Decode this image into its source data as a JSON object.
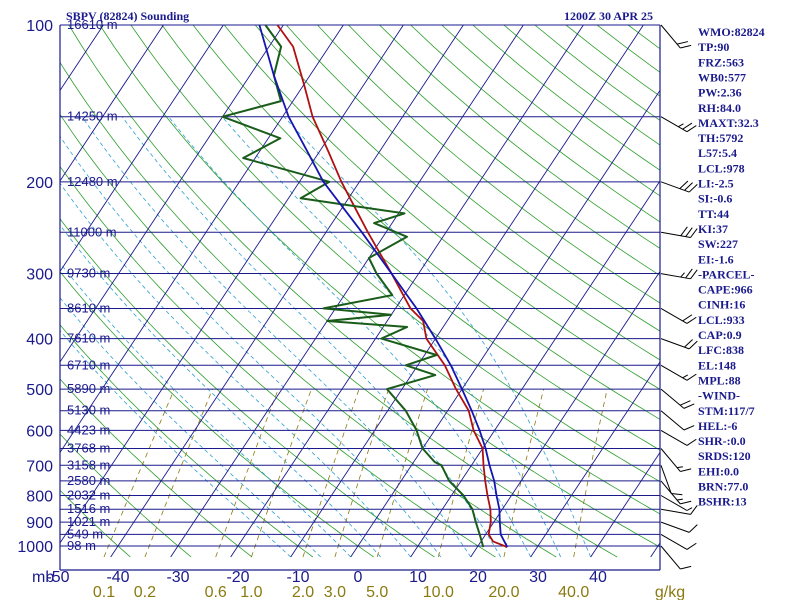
{
  "header": {
    "title": "SBPV (82824) Sounding",
    "time": "1200Z 30 APR 25"
  },
  "chart_data": {
    "type": "line",
    "skewt": true,
    "pressure_ticks": [
      100,
      200,
      300,
      400,
      500,
      600,
      700,
      800,
      900,
      1000
    ],
    "pressure_unit_label": "mb",
    "temp_ticks": [
      -50,
      -40,
      -30,
      -20,
      -10,
      0,
      10,
      20,
      30,
      40
    ],
    "mixing_ratio_ticks": [
      {
        "value": 0.1,
        "label": "0.1"
      },
      {
        "value": 0.2,
        "label": "0.2"
      },
      {
        "value": 0.6,
        "label": "0.6"
      },
      {
        "value": 1.0,
        "label": "1.0"
      },
      {
        "value": 2.0,
        "label": "2.0"
      },
      {
        "value": 3.0,
        "label": "3.0"
      },
      {
        "value": 5.0,
        "label": "5.0"
      },
      {
        "value": 10.0,
        "label": "10.0"
      },
      {
        "value": 20.0,
        "label": "20.0"
      },
      {
        "value": 40.0,
        "label": "40.0"
      }
    ],
    "mixing_ratio_unit": "g/kg",
    "heights": [
      {
        "p": 100,
        "label": "16610 m"
      },
      {
        "p": 150,
        "label": "14250 m"
      },
      {
        "p": 200,
        "label": "12480 m"
      },
      {
        "p": 250,
        "label": "11000 m"
      },
      {
        "p": 300,
        "label": "9730 m"
      },
      {
        "p": 350,
        "label": "8610 m"
      },
      {
        "p": 400,
        "label": "7610 m"
      },
      {
        "p": 450,
        "label": "6710 m"
      },
      {
        "p": 500,
        "label": "5890 m"
      },
      {
        "p": 550,
        "label": "5130 m"
      },
      {
        "p": 600,
        "label": "4423 m"
      },
      {
        "p": 650,
        "label": "3768 m"
      },
      {
        "p": 700,
        "label": "3158 m"
      },
      {
        "p": 750,
        "label": "2580 m"
      },
      {
        "p": 800,
        "label": "2032 m"
      },
      {
        "p": 850,
        "label": "1516 m"
      },
      {
        "p": 900,
        "label": "1021 m"
      },
      {
        "p": 950,
        "label": "549 m"
      },
      {
        "p": 1000,
        "label": "98 m"
      }
    ],
    "series": [
      {
        "key": "temperature",
        "color": "#b01010",
        "points": [
          [
            1005,
            25
          ],
          [
            980,
            22
          ],
          [
            950,
            20.5
          ],
          [
            925,
            20
          ],
          [
            900,
            19.5
          ],
          [
            850,
            18
          ],
          [
            800,
            16
          ],
          [
            750,
            14
          ],
          [
            700,
            12
          ],
          [
            650,
            10
          ],
          [
            600,
            6.5
          ],
          [
            550,
            3.5
          ],
          [
            500,
            -1
          ],
          [
            450,
            -5.5
          ],
          [
            400,
            -11.5
          ],
          [
            370,
            -14
          ],
          [
            350,
            -17.5
          ],
          [
            300,
            -24.5
          ],
          [
            250,
            -33
          ],
          [
            200,
            -43
          ],
          [
            175,
            -48.5
          ],
          [
            150,
            -55
          ],
          [
            130,
            -60
          ],
          [
            110,
            -66
          ],
          [
            100,
            -71
          ]
        ]
      },
      {
        "key": "dewpoint",
        "color": "#1a5c1a",
        "points": [
          [
            1005,
            21
          ],
          [
            950,
            19
          ],
          [
            900,
            17
          ],
          [
            850,
            15
          ],
          [
            800,
            12
          ],
          [
            750,
            8
          ],
          [
            700,
            5
          ],
          [
            690,
            3.5
          ],
          [
            650,
            0
          ],
          [
            600,
            -3
          ],
          [
            550,
            -7
          ],
          [
            500,
            -12.5
          ],
          [
            470,
            -6
          ],
          [
            450,
            -12
          ],
          [
            430,
            -8
          ],
          [
            400,
            -19
          ],
          [
            380,
            -16
          ],
          [
            370,
            -30
          ],
          [
            360,
            -20
          ],
          [
            350,
            -32
          ],
          [
            330,
            -22
          ],
          [
            300,
            -27
          ],
          [
            280,
            -30
          ],
          [
            255,
            -26
          ],
          [
            240,
            -33
          ],
          [
            230,
            -29
          ],
          [
            215,
            -48
          ],
          [
            200,
            -45
          ],
          [
            180,
            -62
          ],
          [
            165,
            -58
          ],
          [
            150,
            -70
          ],
          [
            140,
            -62
          ],
          [
            125,
            -66
          ],
          [
            110,
            -68
          ],
          [
            100,
            -73
          ]
        ]
      },
      {
        "key": "parcel",
        "color": "#1515b0",
        "points": [
          [
            1005,
            25
          ],
          [
            950,
            22.5
          ],
          [
            933,
            22
          ],
          [
            900,
            21
          ],
          [
            850,
            19.5
          ],
          [
            800,
            17.5
          ],
          [
            750,
            15.5
          ],
          [
            700,
            13
          ],
          [
            650,
            10.5
          ],
          [
            600,
            7.5
          ],
          [
            550,
            4
          ],
          [
            500,
            0
          ],
          [
            450,
            -4.5
          ],
          [
            400,
            -10
          ],
          [
            350,
            -16.5
          ],
          [
            300,
            -24.5
          ],
          [
            250,
            -34
          ],
          [
            200,
            -46
          ],
          [
            175,
            -52
          ],
          [
            150,
            -59
          ],
          [
            125,
            -66
          ],
          [
            100,
            -74
          ]
        ]
      }
    ],
    "wind_barbs": [
      {
        "p": 1000,
        "dir": 320,
        "spd": 10
      },
      {
        "p": 950,
        "dir": 300,
        "spd": 10
      },
      {
        "p": 900,
        "dir": 290,
        "spd": 10
      },
      {
        "p": 850,
        "dir": 280,
        "spd": 10
      },
      {
        "p": 800,
        "dir": 300,
        "spd": 5
      },
      {
        "p": 750,
        "dir": 320,
        "spd": 15
      },
      {
        "p": 700,
        "dir": 340,
        "spd": 10
      },
      {
        "p": 650,
        "dir": 320,
        "spd": 15
      },
      {
        "p": 600,
        "dir": 300,
        "spd": 10
      },
      {
        "p": 550,
        "dir": 310,
        "spd": 10
      },
      {
        "p": 500,
        "dir": 310,
        "spd": 20
      },
      {
        "p": 450,
        "dir": 300,
        "spd": 15
      },
      {
        "p": 400,
        "dir": 290,
        "spd": 20
      },
      {
        "p": 350,
        "dir": 300,
        "spd": 20
      },
      {
        "p": 300,
        "dir": 280,
        "spd": 25
      },
      {
        "p": 250,
        "dir": 280,
        "spd": 30
      },
      {
        "p": 200,
        "dir": 290,
        "spd": 30
      },
      {
        "p": 150,
        "dir": 300,
        "spd": 25
      },
      {
        "p": 100,
        "dir": 320,
        "spd": 20
      }
    ]
  },
  "indices": [
    "WMO:82824",
    "TP:90",
    "FRZ:563",
    "WB0:577",
    "PW:2.36",
    "RH:84.0",
    "MAXT:32.3",
    "TH:5792",
    "L57:5.4",
    "LCL:978",
    "LI:-2.5",
    "SI:-0.6",
    "TT:44",
    "KI:37",
    "SW:227",
    "EI:-1.6",
    "-PARCEL-",
    "CAPE:966",
    "CINH:16",
    "LCL:933",
    "CAP:0.9",
    "LFC:838",
    "EL:148",
    "MPL:88",
    "-WIND-",
    "STM:117/7",
    "HEL:-6",
    "SHR-:0.0",
    "SRDS:120",
    "EHI:0.0",
    "BRN:77.0",
    "BSHR:13"
  ],
  "colors": {
    "isobar": "#1a1a8c",
    "isotherm": "#1a1a8c",
    "dry_adiabat": "#2e9e2e",
    "moist_adiabat": "#30a0d0",
    "mixing_ratio": "#8a7a10",
    "frame": "#1a1a8c"
  }
}
